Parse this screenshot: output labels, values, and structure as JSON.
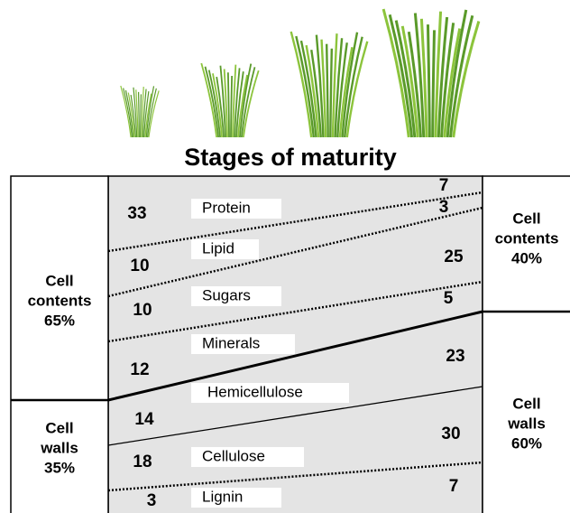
{
  "header": {
    "title": "Stages of maturity"
  },
  "left_column": {
    "contents": [
      "Cell",
      "contents",
      "65%"
    ],
    "walls": [
      "Cell",
      "walls",
      "35%"
    ]
  },
  "right_column": {
    "contents": [
      "Cell",
      "contents",
      "40%"
    ],
    "walls": [
      "Cell",
      "walls",
      "60%"
    ]
  },
  "components": [
    {
      "name": "Protein",
      "early": "33",
      "late": "7"
    },
    {
      "name": "Lipid",
      "early": "10",
      "late": "3"
    },
    {
      "name": "Sugars",
      "early": "10",
      "late": "25"
    },
    {
      "name": "Minerals",
      "early": "12",
      "late": "5"
    },
    {
      "name": "Hemicellulose",
      "early": "14",
      "late": "23"
    },
    {
      "name": "Cellulose",
      "early": "18",
      "late": "30"
    },
    {
      "name": "Lignin",
      "early": "3",
      "late": "7"
    }
  ]
}
